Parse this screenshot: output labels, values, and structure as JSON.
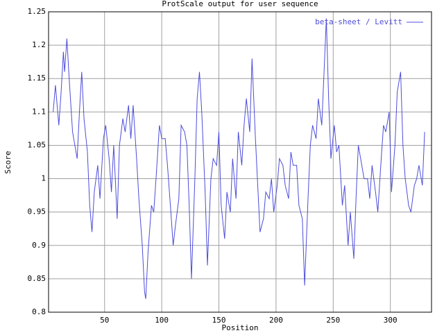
{
  "chart_data": {
    "type": "line",
    "title": "ProtScale output for user sequence",
    "xlabel": "Position",
    "ylabel": "Score",
    "x": [
      5,
      7,
      10,
      12,
      14,
      15,
      17,
      19,
      22,
      24,
      26,
      28,
      30,
      32,
      35,
      37,
      39,
      41,
      44,
      46,
      49,
      51,
      54,
      56,
      58,
      61,
      63,
      66,
      68,
      71,
      73,
      75,
      78,
      80,
      83,
      85,
      86,
      88,
      91,
      93,
      95,
      98,
      100,
      103,
      105,
      108,
      110,
      112,
      115,
      117,
      120,
      122,
      124,
      126,
      129,
      131,
      133,
      135,
      138,
      140,
      143,
      145,
      148,
      150,
      152,
      155,
      157,
      160,
      162,
      165,
      167,
      170,
      172,
      174,
      177,
      179,
      182,
      184,
      186,
      189,
      191,
      194,
      196,
      198,
      201,
      203,
      206,
      208,
      211,
      213,
      215,
      218,
      220,
      223,
      225,
      228,
      230,
      232,
      235,
      237,
      240,
      242,
      244,
      246,
      248,
      251,
      253,
      255,
      258,
      260,
      263,
      265,
      268,
      270,
      272,
      275,
      277,
      280,
      282,
      284,
      287,
      289,
      292,
      294,
      296,
      299,
      301,
      304,
      306,
      309,
      311,
      313,
      316,
      318,
      321,
      323,
      325,
      328,
      330
    ],
    "series": [
      {
        "name": "beta-sheet / Levitt",
        "color": "#4c4cdc",
        "values": [
          1.1,
          1.14,
          1.08,
          1.13,
          1.19,
          1.16,
          1.21,
          1.15,
          1.07,
          1.05,
          1.03,
          1.1,
          1.16,
          1.09,
          1.04,
          0.96,
          0.92,
          0.98,
          1.02,
          0.97,
          1.06,
          1.08,
          1.03,
          0.98,
          1.05,
          0.94,
          1.05,
          1.09,
          1.07,
          1.11,
          1.06,
          1.11,
          1.03,
          0.97,
          0.9,
          0.83,
          0.82,
          0.89,
          0.96,
          0.95,
          1.0,
          1.08,
          1.06,
          1.06,
          1.02,
          0.95,
          0.9,
          0.93,
          0.97,
          1.08,
          1.07,
          1.05,
          0.96,
          0.85,
          1.0,
          1.12,
          1.16,
          1.1,
          0.98,
          0.87,
          1.0,
          1.03,
          1.02,
          1.07,
          0.96,
          0.91,
          0.98,
          0.95,
          1.03,
          0.97,
          1.07,
          1.02,
          1.08,
          1.12,
          1.07,
          1.18,
          1.06,
          0.99,
          0.92,
          0.94,
          0.98,
          0.97,
          1.0,
          0.95,
          0.99,
          1.03,
          1.02,
          0.99,
          0.97,
          1.04,
          1.02,
          1.02,
          0.96,
          0.94,
          0.84,
          0.97,
          1.05,
          1.08,
          1.06,
          1.12,
          1.08,
          1.16,
          1.24,
          1.12,
          1.03,
          1.08,
          1.04,
          1.05,
          0.96,
          0.99,
          0.9,
          0.95,
          0.88,
          0.97,
          1.05,
          1.02,
          1.0,
          1.0,
          0.97,
          1.02,
          0.98,
          0.95,
          1.03,
          1.08,
          1.07,
          1.1,
          0.98,
          1.05,
          1.13,
          1.16,
          1.05,
          1.0,
          0.96,
          0.95,
          0.99,
          1.0,
          1.02,
          0.99,
          1.07
        ]
      }
    ],
    "xlim": [
      1,
      336
    ],
    "xticks": [
      50,
      100,
      150,
      200,
      250,
      300
    ],
    "ylim": [
      0.8,
      1.25
    ],
    "yticks": [
      0.8,
      0.85,
      0.9,
      0.95,
      1,
      1.05,
      1.1,
      1.15,
      1.2,
      1.25
    ],
    "grid": true,
    "legend": "top-right"
  }
}
